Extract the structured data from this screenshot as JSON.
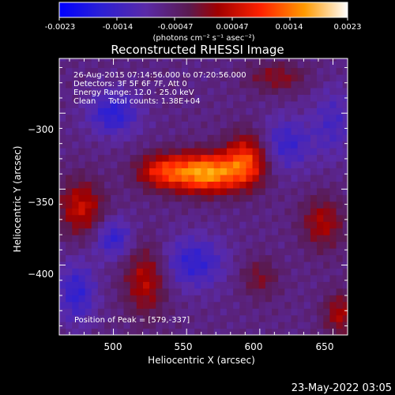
{
  "colorbar": {
    "tick_labels": [
      "-0.0023",
      "-0.0014",
      "-0.00047",
      "0.00047",
      "0.0014",
      "0.0023"
    ],
    "units_label": "(photons cm⁻² s⁻¹ asec⁻²)",
    "range": [
      -0.0023,
      0.0023
    ]
  },
  "chart_data": {
    "type": "heatmap",
    "title": "Reconstructed RHESSI Image",
    "xlabel": "Heliocentric X (arcsec)",
    "ylabel": "Heliocentric Y (arcsec)",
    "xlim": [
      463,
      660
    ],
    "ylim": [
      -446,
      -264
    ],
    "x_ticks": [
      500,
      550,
      600,
      650
    ],
    "y_ticks": [
      -300,
      -350,
      -400
    ],
    "x_tick_labels": [
      "500",
      "550",
      "600",
      "650"
    ],
    "y_tick_labels": [
      "−300",
      "−350",
      "−400"
    ],
    "annotations": [
      "26-Aug-2015 07:14:56.000 to 07:20:56.000",
      "Detectors: 3F 5F 6F 7F, Att 0",
      "Energy Range: 12.0 - 25.0 keV",
      "Clean     Total counts: 1.38E+04"
    ],
    "peak_label": "Position of Peak = [579,-337]",
    "peak": [
      579,
      -337
    ],
    "sources": [
      {
        "x": 563,
        "y": -339,
        "sx": 18,
        "sy": 9,
        "amp": 0.0023
      },
      {
        "x": 591,
        "y": -330,
        "sx": 10,
        "sy": 12,
        "amp": 0.0014
      },
      {
        "x": 532,
        "y": -338,
        "sx": 12,
        "sy": 8,
        "amp": 0.0011
      },
      {
        "x": 478,
        "y": -362,
        "sx": 11,
        "sy": 13,
        "amp": 0.0011
      },
      {
        "x": 522,
        "y": -410,
        "sx": 10,
        "sy": 16,
        "amp": 0.001
      },
      {
        "x": 643,
        "y": -372,
        "sx": 10,
        "sy": 12,
        "amp": 0.0009
      },
      {
        "x": 612,
        "y": -276,
        "sx": 14,
        "sy": 7,
        "amp": 0.0007
      },
      {
        "x": 655,
        "y": -432,
        "sx": 8,
        "sy": 10,
        "amp": 0.0009
      },
      {
        "x": 600,
        "y": -408,
        "sx": 9,
        "sy": 9,
        "amp": 0.0006
      },
      {
        "x": 500,
        "y": -300,
        "sx": 12,
        "sy": 10,
        "amp": -0.001
      },
      {
        "x": 618,
        "y": -320,
        "sx": 12,
        "sy": 12,
        "amp": -0.0008
      },
      {
        "x": 555,
        "y": -398,
        "sx": 15,
        "sy": 12,
        "amp": -0.0009
      },
      {
        "x": 500,
        "y": -382,
        "sx": 9,
        "sy": 9,
        "amp": -0.0009
      },
      {
        "x": 475,
        "y": -418,
        "sx": 9,
        "sy": 14,
        "amp": -0.0009
      },
      {
        "x": 650,
        "y": -306,
        "sx": 10,
        "sy": 16,
        "amp": -0.0006
      }
    ]
  },
  "timestamp": "23-May-2022 03:05",
  "colors": {
    "background": "#000000",
    "foreground": "#ffffff",
    "colormap": [
      "#0000ff",
      "#3a1fbf",
      "#6a2a9a",
      "#551a40",
      "#a40000",
      "#ff2200",
      "#ff9a00",
      "#ffffff"
    ]
  }
}
